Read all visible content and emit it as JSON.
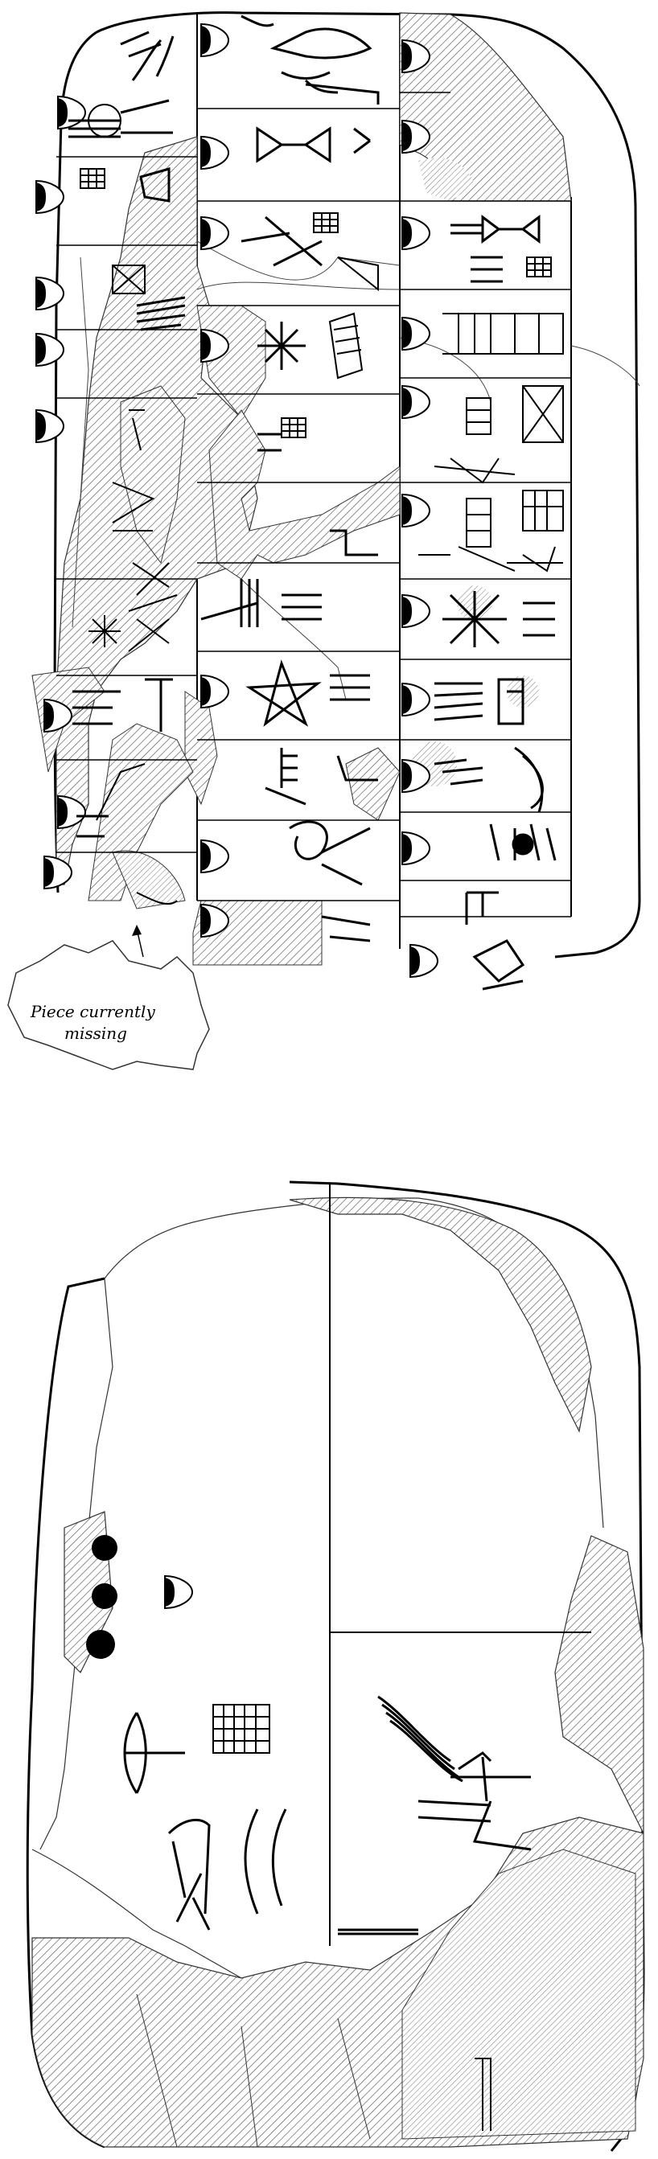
{
  "annotation": {
    "line1": "Piece currently",
    "line2": "missing"
  },
  "colors": {
    "ink": "#000000",
    "outline": "#333333",
    "hatch": "#555555",
    "background": "#ffffff"
  },
  "icons": {
    "arrow": "arrow-icon",
    "sign": "cuneiform-sign-icon",
    "numeral": "numeral-icon"
  }
}
